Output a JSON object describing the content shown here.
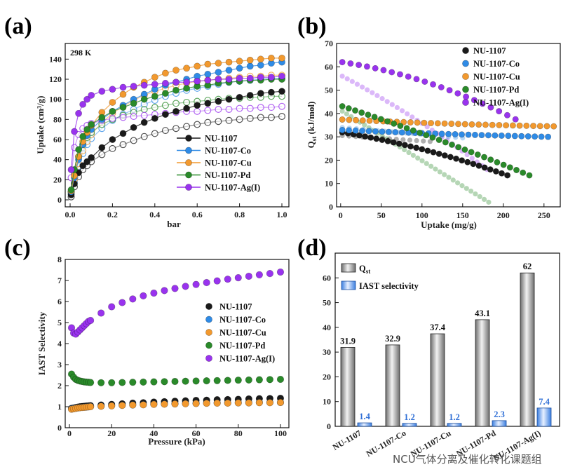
{
  "panels": {
    "a": "(a)",
    "b": "(b)",
    "c": "(c)",
    "d": "(d)"
  },
  "colors": {
    "NU-1107": "#1a1a1a",
    "NU-1107-Co": "#2f8be6",
    "NU-1107-Cu": "#f2992e",
    "NU-1107-Pd": "#2a8a2a",
    "NU-1107-Ag(I)": "#9933ee",
    "bar_qst": "#9a9a9a",
    "bar_iast": "#3a7ee0",
    "iast_label": "#2f6fd6"
  },
  "watermark": "NCU气体分离及催化转化课题组",
  "chart_data": [
    {
      "id": "a",
      "type": "line",
      "note": "298 K",
      "xlabel": "bar",
      "ylabel": "Uptake (cm³/g)",
      "xlim": [
        0,
        1.0
      ],
      "ylim": [
        0,
        150
      ],
      "xticks": [
        "0.0",
        "0.2",
        "0.4",
        "0.6",
        "0.8",
        "1.0"
      ],
      "yticks": [
        "0",
        "20",
        "40",
        "60",
        "80",
        "100",
        "120",
        "140"
      ],
      "legend": [
        "NU-1107",
        "NU-1107-Co",
        "NU-1107-Cu",
        "NU-1107-Pd",
        "NU-1107-Ag(I)"
      ],
      "x": [
        0.005,
        0.02,
        0.04,
        0.06,
        0.08,
        0.1,
        0.15,
        0.2,
        0.25,
        0.3,
        0.35,
        0.4,
        0.45,
        0.5,
        0.55,
        0.6,
        0.65,
        0.7,
        0.75,
        0.8,
        0.85,
        0.9,
        0.95,
        1.0
      ],
      "series": [
        {
          "name": "NU-1107",
          "filled": true,
          "values": [
            5,
            16,
            27,
            34,
            38,
            42,
            52,
            60,
            66,
            72,
            77,
            81,
            85,
            88,
            91,
            94,
            96,
            98,
            100,
            102,
            104,
            106,
            107,
            108
          ]
        },
        {
          "name": "NU-1107",
          "filled": false,
          "values": [
            3,
            13,
            23,
            30,
            34,
            38,
            45,
            51,
            55,
            59,
            63,
            66,
            69,
            71,
            73,
            75,
            77,
            78,
            79,
            80,
            81,
            82,
            82,
            83
          ]
        },
        {
          "name": "NU-1107-Co",
          "filled": true,
          "values": [
            8,
            22,
            40,
            55,
            64,
            70,
            80,
            88,
            94,
            100,
            105,
            110,
            114,
            117,
            120,
            123,
            125,
            127,
            129,
            131,
            133,
            134,
            136,
            137
          ]
        },
        {
          "name": "NU-1107-Co",
          "filled": false,
          "values": [
            6,
            18,
            33,
            46,
            55,
            61,
            71,
            79,
            85,
            90,
            95,
            99,
            103,
            106,
            109,
            111,
            113,
            115,
            117,
            118,
            119,
            120,
            121,
            121
          ]
        },
        {
          "name": "NU-1107-Cu",
          "filled": true,
          "values": [
            9,
            24,
            43,
            58,
            67,
            74,
            87,
            97,
            105,
            112,
            117,
            122,
            126,
            129,
            131,
            133,
            135,
            136,
            137,
            138,
            139,
            140,
            141,
            141
          ]
        },
        {
          "name": "NU-1107-Cu",
          "filled": false,
          "values": [
            7,
            20,
            36,
            49,
            58,
            65,
            77,
            86,
            93,
            99,
            104,
            108,
            111,
            114,
            116,
            118,
            119,
            120,
            121,
            122,
            123,
            123,
            124,
            124
          ]
        },
        {
          "name": "NU-1107-Pd",
          "filled": true,
          "values": [
            10,
            30,
            50,
            63,
            70,
            75,
            82,
            88,
            92,
            96,
            100,
            103,
            106,
            109,
            111,
            113,
            114,
            116,
            117,
            118,
            119,
            119,
            120,
            120
          ]
        },
        {
          "name": "NU-1107-Pd",
          "filled": false,
          "values": [
            8,
            25,
            43,
            55,
            62,
            67,
            75,
            80,
            84,
            87,
            90,
            92,
            94,
            96,
            97,
            98,
            99,
            100,
            101,
            101,
            102,
            102,
            103,
            103
          ]
        },
        {
          "name": "NU-1107-Ag(I)",
          "filled": true,
          "values": [
            30,
            68,
            86,
            95,
            100,
            104,
            108,
            110,
            112,
            113,
            114,
            115,
            116,
            117,
            117,
            118,
            119,
            120,
            120,
            121,
            121,
            122,
            122,
            123
          ]
        },
        {
          "name": "NU-1107-Ag(I)",
          "filled": false,
          "values": [
            22,
            52,
            65,
            71,
            74,
            76,
            79,
            81,
            82,
            83,
            84,
            85,
            86,
            87,
            88,
            88,
            89,
            90,
            90,
            91,
            91,
            92,
            92,
            93
          ]
        }
      ]
    },
    {
      "id": "b",
      "type": "scatter",
      "xlabel": "Uptake (mg/g)",
      "ylabel": "Q",
      "ylabel_sub": "st",
      "ylabel_unit": " (kJ/mol)",
      "xlim": [
        -5,
        270
      ],
      "ylim": [
        0,
        70
      ],
      "xticks": [
        "0",
        "50",
        "100",
        "150",
        "200",
        "250"
      ],
      "xtick_values": [
        0,
        50,
        100,
        150,
        200,
        250
      ],
      "yticks": [
        "0",
        "10",
        "20",
        "30",
        "40",
        "50",
        "60",
        "70"
      ],
      "legend": [
        "NU-1107",
        "NU-1107-Co",
        "NU-1107-Cu",
        "NU-1107-Pd",
        "NU-1107-Ag(I)"
      ],
      "series": [
        {
          "name": "NU-1107",
          "strong": true,
          "x0": 2,
          "x1": 205,
          "y0": 31.9,
          "y1": 13.5,
          "curve": 0.6,
          "n": 30
        },
        {
          "name": "NU-1107-Co",
          "strong": true,
          "x0": 2,
          "x1": 255,
          "y0": 32.9,
          "y1": 30,
          "curve": -0.5,
          "n": 32
        },
        {
          "name": "NU-1107-Cu",
          "strong": true,
          "x0": 2,
          "x1": 262,
          "y0": 37.4,
          "y1": 34.5,
          "curve": -0.7,
          "n": 32
        },
        {
          "name": "NU-1107-Pd",
          "strong": true,
          "x0": 2,
          "x1": 232,
          "y0": 43.1,
          "y1": 13.5,
          "curve": 0.2,
          "n": 30
        },
        {
          "name": "NU-1107-Ag(I)",
          "strong": true,
          "x0": 2,
          "x1": 215,
          "y0": 62,
          "y1": 37.5,
          "curve": 0.9,
          "n": 22
        },
        {
          "name": "NU-1107-Pd",
          "strong": false,
          "x0": 2,
          "x1": 182,
          "y0": 41,
          "y1": 2,
          "curve": 0.0,
          "n": 34
        },
        {
          "name": "NU-1107-Ag(I)",
          "strong": false,
          "x0": 2,
          "x1": 180,
          "y0": 56,
          "y1": 16,
          "curve": 0.3,
          "n": 30
        },
        {
          "name": "NU-1107",
          "strong": false,
          "x0": 2,
          "x1": 110,
          "y0": 30.5,
          "y1": 28,
          "curve": 0.0,
          "n": 14
        },
        {
          "name": "NU-1107-Co",
          "strong": false,
          "x0": 2,
          "x1": 150,
          "y0": 34,
          "y1": 29.5,
          "curve": 0.0,
          "n": 18
        }
      ]
    },
    {
      "id": "c",
      "type": "scatter",
      "xlabel": "Pressure (kPa)",
      "ylabel": "IAST Selectivity",
      "xlim": [
        -2,
        104
      ],
      "ylim": [
        0,
        8
      ],
      "xticks": [
        "0",
        "20",
        "40",
        "60",
        "80",
        "100"
      ],
      "xtick_values": [
        0,
        20,
        40,
        60,
        80,
        100
      ],
      "yticks": [
        "0",
        "1",
        "2",
        "3",
        "4",
        "5",
        "6",
        "7",
        "8"
      ],
      "legend": [
        "NU-1107",
        "NU-1107-Co",
        "NU-1107-Cu",
        "NU-1107-Pd",
        "NU-1107-Ag(I)"
      ],
      "x": [
        1,
        2,
        3,
        4,
        5,
        6,
        7,
        8,
        9,
        10,
        15,
        20,
        25,
        30,
        35,
        40,
        45,
        50,
        55,
        60,
        65,
        70,
        75,
        80,
        85,
        90,
        95,
        100
      ],
      "series": [
        {
          "name": "NU-1107",
          "values": [
            0.92,
            0.94,
            0.96,
            0.98,
            1.0,
            1.01,
            1.02,
            1.03,
            1.04,
            1.05,
            1.08,
            1.11,
            1.14,
            1.17,
            1.19,
            1.22,
            1.24,
            1.26,
            1.28,
            1.3,
            1.31,
            1.33,
            1.34,
            1.35,
            1.37,
            1.38,
            1.39,
            1.4
          ]
        },
        {
          "name": "NU-1107-Co",
          "values": [
            0.9,
            0.92,
            0.93,
            0.95,
            0.96,
            0.97,
            0.98,
            0.99,
            1.0,
            1.01,
            1.03,
            1.05,
            1.07,
            1.09,
            1.1,
            1.12,
            1.13,
            1.14,
            1.15,
            1.16,
            1.17,
            1.18,
            1.18,
            1.19,
            1.19,
            1.2,
            1.2,
            1.2
          ]
        },
        {
          "name": "NU-1107-Cu",
          "values": [
            0.88,
            0.9,
            0.92,
            0.94,
            0.95,
            0.96,
            0.97,
            0.98,
            0.99,
            1.0,
            1.02,
            1.04,
            1.06,
            1.08,
            1.09,
            1.11,
            1.12,
            1.13,
            1.14,
            1.15,
            1.16,
            1.17,
            1.17,
            1.18,
            1.18,
            1.19,
            1.19,
            1.2
          ]
        },
        {
          "name": "NU-1107-Pd",
          "values": [
            2.55,
            2.4,
            2.3,
            2.25,
            2.22,
            2.2,
            2.18,
            2.17,
            2.16,
            2.15,
            2.14,
            2.14,
            2.15,
            2.16,
            2.17,
            2.18,
            2.19,
            2.2,
            2.21,
            2.22,
            2.23,
            2.24,
            2.25,
            2.26,
            2.27,
            2.28,
            2.29,
            2.3
          ]
        },
        {
          "name": "NU-1107-Ag(I)",
          "values": [
            4.75,
            4.5,
            4.45,
            4.55,
            4.65,
            4.75,
            4.85,
            4.95,
            5.05,
            5.1,
            5.45,
            5.75,
            5.95,
            6.12,
            6.27,
            6.4,
            6.52,
            6.62,
            6.72,
            6.81,
            6.9,
            6.98,
            7.06,
            7.13,
            7.2,
            7.27,
            7.33,
            7.4
          ]
        }
      ]
    },
    {
      "id": "d",
      "type": "bar",
      "categories": [
        "NU-1107",
        "NU-1107-Co",
        "NU-1107-Cu",
        "NU-1107-Pd",
        "NU-1107-Ag(I)"
      ],
      "ylim": [
        0,
        70
      ],
      "yticks": [
        "0",
        "10",
        "20",
        "30",
        "40",
        "50",
        "60"
      ],
      "legend": [
        "Q",
        "IAST selectivity"
      ],
      "legend_sub": "st",
      "series": [
        {
          "name": "Qst",
          "values": [
            31.9,
            32.9,
            37.4,
            43.1,
            62
          ]
        },
        {
          "name": "IAST selectivity",
          "values": [
            1.4,
            1.2,
            1.2,
            2.3,
            7.4
          ]
        }
      ],
      "value_labels_qst": [
        "31.9",
        "32.9",
        "37.4",
        "43.1",
        "62"
      ],
      "value_labels_iast": [
        "1.4",
        "1.2",
        "1.2",
        "2.3",
        "7.4"
      ]
    }
  ]
}
